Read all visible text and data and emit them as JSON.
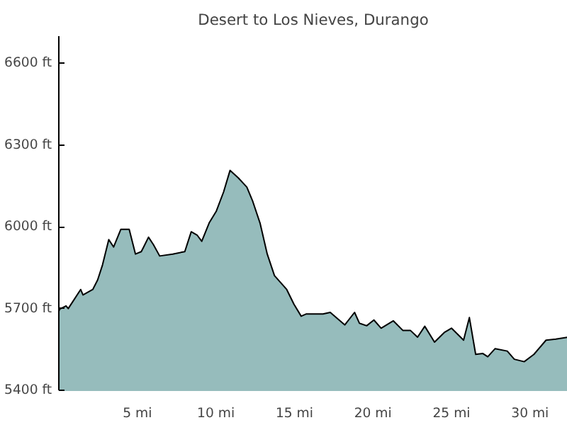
{
  "chart_data": {
    "type": "area",
    "title": "Desert to Los Nieves, Durango",
    "x": [
      0,
      0.06,
      0.46,
      0.6,
      1.39,
      1.54,
      2.16,
      2.47,
      2.78,
      3.18,
      3.49,
      3.95,
      4.48,
      4.88,
      5.25,
      5.4,
      5.71,
      6.02,
      6.42,
      7.25,
      8.02,
      8.43,
      8.8,
      9.1,
      9.57,
      10.03,
      10.49,
      10.9,
      11.42,
      11.97,
      12.35,
      12.81,
      13.27,
      13.73,
      14.51,
      14.97,
      15.43,
      15.74,
      16.82,
      17.28,
      18.21,
      18.83,
      19.14,
      19.6,
      20.06,
      20.52,
      21.3,
      21.9,
      22.38,
      22.84,
      23.3,
      23.92,
      24.54,
      25.0,
      25.77,
      26.14,
      26.54,
      27.0,
      27.31,
      27.78,
      28.55,
      29.0,
      29.63,
      30.25,
      31.02,
      31.64,
      32.4
    ],
    "series": [
      {
        "color": "#96bcbc",
        "values": [
          5690,
          5698,
          5710,
          5700,
          5770,
          5750,
          5770,
          5805,
          5860,
          5953,
          5926,
          5991,
          5991,
          5900,
          5909,
          5926,
          5962,
          5935,
          5893,
          5900,
          5909,
          5982,
          5970,
          5947,
          6014,
          6058,
          6128,
          6207,
          6180,
          6146,
          6093,
          6014,
          5900,
          5821,
          5770,
          5716,
          5672,
          5680,
          5680,
          5686,
          5640,
          5686,
          5646,
          5637,
          5658,
          5628,
          5655,
          5620,
          5620,
          5595,
          5635,
          5577,
          5612,
          5628,
          5584,
          5667,
          5532,
          5535,
          5523,
          5553,
          5544,
          5514,
          5505,
          5532,
          5584,
          5588,
          5595
        ]
      }
    ],
    "xlim": [
      0,
      32.4
    ],
    "ylim": [
      5400,
      6700
    ],
    "xticks": [
      {
        "value": 5,
        "label": "5 mi"
      },
      {
        "value": 10,
        "label": "10 mi"
      },
      {
        "value": 15,
        "label": "15 mi"
      },
      {
        "value": 20,
        "label": "20 mi"
      },
      {
        "value": 25,
        "label": "25 mi"
      },
      {
        "value": 30,
        "label": "30 mi"
      }
    ],
    "yticks": [
      {
        "value": 5400,
        "label": "5400 ft"
      },
      {
        "value": 5700,
        "label": "5700 ft"
      },
      {
        "value": 6000,
        "label": "6000 ft"
      },
      {
        "value": 6300,
        "label": "6300 ft"
      },
      {
        "value": 6600,
        "label": "6600 ft"
      }
    ],
    "grid": false
  }
}
